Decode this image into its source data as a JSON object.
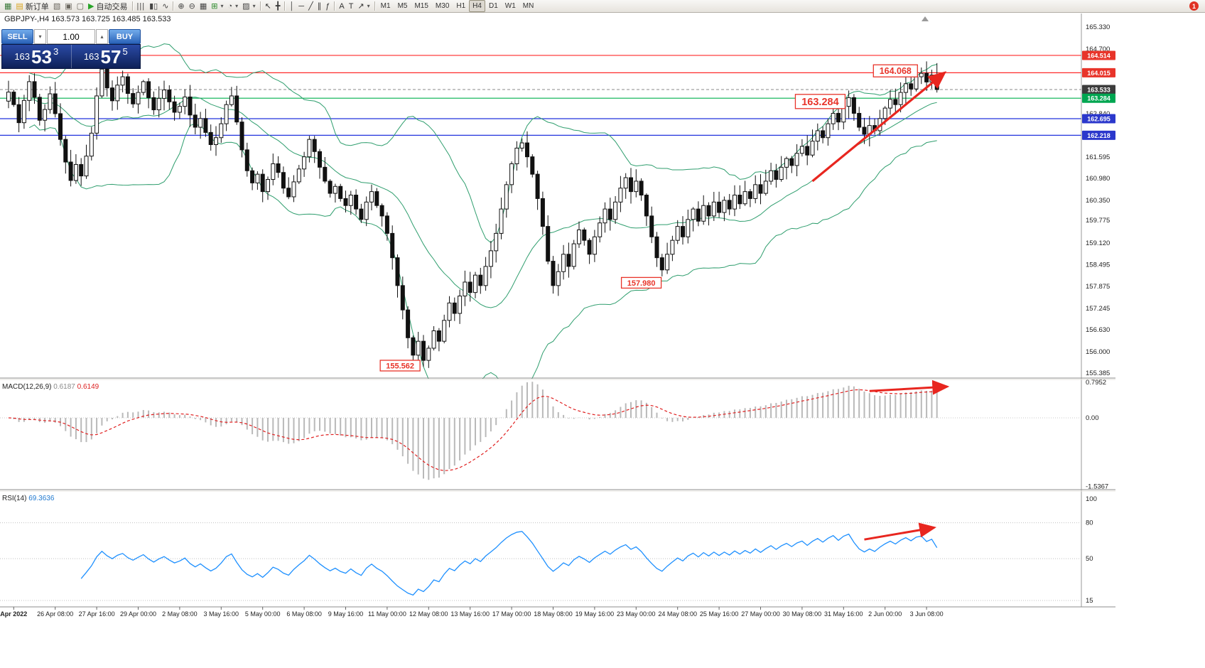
{
  "toolbar": {
    "items": [
      {
        "kind": "icon",
        "name": "new-chart-button",
        "glyph": "▦",
        "color": "#3b7a3b"
      },
      {
        "kind": "labeled",
        "name": "new-order-button",
        "glyph": "▤",
        "glyph_color": "#d9a520",
        "label": "新订单"
      },
      {
        "kind": "icon",
        "name": "profiles-button",
        "glyph": "▧",
        "color": "#6b675f"
      },
      {
        "kind": "icon",
        "name": "chart-list-button",
        "glyph": "▣",
        "color": "#6b675f"
      },
      {
        "kind": "icon",
        "name": "new-window-button",
        "glyph": "▢",
        "color": "#6b675f"
      },
      {
        "kind": "labeled",
        "name": "autotrading-button",
        "glyph": "▶",
        "glyph_color": "#28a428",
        "label": "自动交易"
      },
      {
        "kind": "sep"
      },
      {
        "kind": "icon",
        "name": "bar-chart-type-button",
        "glyph": "|||",
        "color": "#444"
      },
      {
        "kind": "icon",
        "name": "candlestick-type-button",
        "glyph": "▮▯",
        "color": "#444"
      },
      {
        "kind": "icon",
        "name": "line-chart-type-button",
        "glyph": "∿",
        "color": "#444"
      },
      {
        "kind": "sep"
      },
      {
        "kind": "icon",
        "name": "zoom-in-button",
        "glyph": "⊕",
        "color": "#444"
      },
      {
        "kind": "icon",
        "name": "zoom-out-button",
        "glyph": "⊖",
        "color": "#444"
      },
      {
        "kind": "icon",
        "name": "tile-windows-button",
        "glyph": "▦",
        "color": "#444"
      },
      {
        "kind": "icon",
        "name": "indicators-button",
        "glyph": "⊞",
        "color": "#2a8a2a",
        "dropdown": true
      },
      {
        "kind": "icon",
        "name": "periods-button",
        "glyph": "◔",
        "color": "#444",
        "dropdown": true
      },
      {
        "kind": "icon",
        "name": "templates-button",
        "glyph": "▨",
        "color": "#444",
        "dropdown": true
      },
      {
        "kind": "sep"
      },
      {
        "kind": "icon",
        "name": "cursor-button",
        "glyph": "↖",
        "color": "#333"
      },
      {
        "kind": "icon",
        "name": "crosshair-button",
        "glyph": "╋",
        "color": "#333"
      },
      {
        "kind": "sep"
      },
      {
        "kind": "icon",
        "name": "vertical-line-button",
        "glyph": "│",
        "color": "#333"
      },
      {
        "kind": "icon",
        "name": "horizontal-line-button",
        "glyph": "─",
        "color": "#333"
      },
      {
        "kind": "icon",
        "name": "trendline-button",
        "glyph": "╱",
        "color": "#333"
      },
      {
        "kind": "icon",
        "name": "channel-button",
        "glyph": "∥",
        "color": "#333"
      },
      {
        "kind": "icon",
        "name": "fibonacci-button",
        "glyph": "ƒ",
        "color": "#333"
      },
      {
        "kind": "sep"
      },
      {
        "kind": "icon",
        "name": "text-button",
        "glyph": "A",
        "color": "#333"
      },
      {
        "kind": "icon",
        "name": "text-label-button",
        "glyph": "T",
        "color": "#333"
      },
      {
        "kind": "icon",
        "name": "arrows-button",
        "glyph": "↗",
        "color": "#333",
        "dropdown": true
      },
      {
        "kind": "sep"
      }
    ],
    "timeframes": [
      "M1",
      "M5",
      "M15",
      "M30",
      "H1",
      "H4",
      "D1",
      "W1",
      "MN"
    ],
    "active_timeframe": "H4",
    "notification_badge": "1"
  },
  "chart_window": {
    "title": "GBPJPY-,H4  163.573 163.725 163.485 163.533"
  },
  "trade_panel": {
    "sell_label": "SELL",
    "buy_label": "BUY",
    "volume": "1.00",
    "down_glyph": "▾",
    "up_glyph": "▴",
    "bid": {
      "prefix": "163",
      "main": "53",
      "sup": "3"
    },
    "ask": {
      "prefix": "163",
      "main": "57",
      "sup": "5"
    }
  },
  "chart_data": [
    {
      "type": "candlestick",
      "symbol": "GBPJPY",
      "timeframe": "H4",
      "title_ohlc": "163.573 163.725 163.485 163.533",
      "first_open": 163.2,
      "closes": [
        163.46,
        163.1,
        162.58,
        163.22,
        163.76,
        163.31,
        162.65,
        162.96,
        163.41,
        162.84,
        162.1,
        161.45,
        160.92,
        161.38,
        161.05,
        161.62,
        162.28,
        163.35,
        164.12,
        163.58,
        163.21,
        163.66,
        163.9,
        163.42,
        163.12,
        163.45,
        163.76,
        163.3,
        162.95,
        163.28,
        163.52,
        163.18,
        162.88,
        163.05,
        163.32,
        162.8,
        162.45,
        162.7,
        162.3,
        161.95,
        162.15,
        162.55,
        163.1,
        163.35,
        162.6,
        161.8,
        161.2,
        160.85,
        161.1,
        160.6,
        160.95,
        161.4,
        161.15,
        160.7,
        160.45,
        160.88,
        161.25,
        161.6,
        162.1,
        161.75,
        161.3,
        160.9,
        160.55,
        160.75,
        160.4,
        160.2,
        160.5,
        160.1,
        159.8,
        160.3,
        160.6,
        160.2,
        159.9,
        159.4,
        158.7,
        157.9,
        157.2,
        156.4,
        155.9,
        156.3,
        155.75,
        156.1,
        156.6,
        156.3,
        156.9,
        157.4,
        157.1,
        157.6,
        158.0,
        157.7,
        158.2,
        157.9,
        158.45,
        158.9,
        159.4,
        160.1,
        160.8,
        161.4,
        161.85,
        162.0,
        161.6,
        161.1,
        160.4,
        159.6,
        158.6,
        157.9,
        158.3,
        158.8,
        158.45,
        159.1,
        159.5,
        159.2,
        158.8,
        159.3,
        159.7,
        160.1,
        159.8,
        160.3,
        160.7,
        161.0,
        160.6,
        160.9,
        160.5,
        159.9,
        159.3,
        158.7,
        158.35,
        158.8,
        159.2,
        159.6,
        159.3,
        159.8,
        160.1,
        159.75,
        160.2,
        159.9,
        160.3,
        160.0,
        160.35,
        160.1,
        160.5,
        160.25,
        160.6,
        160.4,
        160.8,
        160.55,
        160.9,
        161.2,
        160.95,
        161.3,
        161.55,
        161.35,
        161.7,
        161.9,
        161.65,
        162.05,
        162.35,
        162.15,
        162.55,
        162.85,
        162.6,
        163.05,
        163.3,
        162.85,
        162.45,
        162.25,
        162.5,
        162.35,
        162.7,
        163.0,
        163.25,
        163.1,
        163.45,
        163.7,
        163.55,
        163.9,
        164.0,
        163.75,
        163.95,
        163.533
      ],
      "ylim": [
        155.385,
        165.33
      ],
      "y_ticks": [
        "165.330",
        "164.700",
        "162.840",
        "161.595",
        "160.980",
        "160.350",
        "159.775",
        "159.120",
        "158.495",
        "157.875",
        "157.245",
        "156.630",
        "156.000",
        "155.385"
      ],
      "x_labels": [
        "Apr 2022",
        "26 Apr 08:00",
        "27 Apr 16:00",
        "29 Apr 00:00",
        "2 May 08:00",
        "3 May 16:00",
        "5 May 00:00",
        "6 May 08:00",
        "9 May 16:00",
        "11 May 00:00",
        "12 May 08:00",
        "13 May 16:00",
        "17 May 00:00",
        "18 May 08:00",
        "19 May 16:00",
        "23 May 00:00",
        "24 May 08:00",
        "25 May 16:00",
        "27 May 00:00",
        "30 May 08:00",
        "31 May 16:00",
        "2 Jun 00:00",
        "3 Jun 08:00"
      ],
      "bollinger": {
        "period": 20,
        "deviation": 2,
        "color": "#2f9e6e"
      },
      "hlines": [
        {
          "price": 164.514,
          "color": "#ff2a2a"
        },
        {
          "price": 164.015,
          "color": "#ff2a2a"
        },
        {
          "price": 163.284,
          "color": "#00b14f"
        },
        {
          "price": 162.695,
          "color": "#2233dd"
        },
        {
          "price": 162.218,
          "color": "#2233dd"
        },
        {
          "price": 163.533,
          "color": "#888888",
          "dashed": true
        }
      ],
      "price_badges": [
        {
          "text": "164.514",
          "price": 164.514,
          "bg": "#e8342a"
        },
        {
          "text": "164.015",
          "price": 164.015,
          "bg": "#e8342a"
        },
        {
          "text": "163.533",
          "price": 163.533,
          "bg": "#3c3c3c"
        },
        {
          "text": "163.284",
          "price": 163.284,
          "bg": "#00a651"
        },
        {
          "text": "162.695",
          "price": 162.695,
          "bg": "#2b38cc"
        },
        {
          "text": "162.218",
          "price": 162.218,
          "bg": "#2b38cc"
        }
      ],
      "annotations": [
        {
          "text": "155.562",
          "index": 75.5,
          "price": 155.6,
          "size": "sm"
        },
        {
          "text": "157.980",
          "index": 122,
          "price": 157.98,
          "size": "sm"
        },
        {
          "text": "163.284",
          "index": 156.5,
          "price": 163.19,
          "size": "lg"
        },
        {
          "text": "164.068",
          "index": 171,
          "price": 164.07,
          "size": "md"
        }
      ],
      "trend_arrow": {
        "i1": 155,
        "p1": 160.9,
        "i2": 180.5,
        "p2": 164.02,
        "color": "#e8261f"
      }
    },
    {
      "type": "bar",
      "name": "macd",
      "label": "MACD(12,26,9)",
      "value_main": "0.6187",
      "value_signal": "0.6149",
      "params": {
        "fast": 12,
        "slow": 26,
        "signal": 9
      },
      "y_ticks": [
        {
          "v": 0.7952,
          "t": "0.7952"
        },
        {
          "v": 0,
          "t": "0.00"
        },
        {
          "v": -1.5367,
          "t": "-1.5367"
        }
      ],
      "arrow": {
        "i1": 166,
        "v1": 0.6,
        "i2": 181,
        "v2": 0.7,
        "color": "#e8261f"
      }
    },
    {
      "type": "line",
      "name": "rsi",
      "label": "RSI(14)",
      "value": "69.3636",
      "period": 14,
      "levels": [
        80,
        50,
        15
      ],
      "y_ticks": [
        {
          "v": 100,
          "t": "100"
        },
        {
          "v": 80,
          "t": "80"
        },
        {
          "v": 50,
          "t": "50"
        },
        {
          "v": 15,
          "t": "15"
        }
      ],
      "arrow": {
        "i1": 165,
        "v1": 66,
        "i2": 178.5,
        "v2": 76,
        "color": "#e8261f"
      }
    }
  ]
}
